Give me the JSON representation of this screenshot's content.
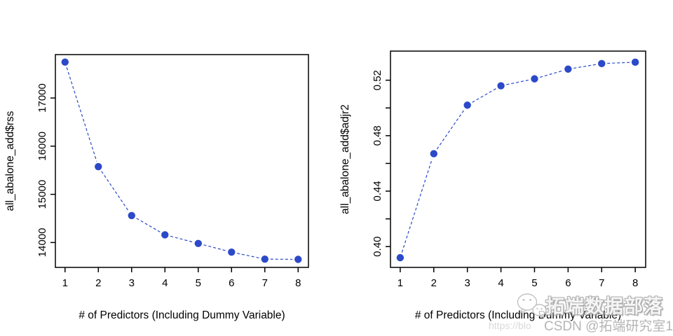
{
  "palette": {
    "series_blue": "#2B49C9",
    "axis_black": "#000000",
    "background": "#ffffff",
    "watermark_gray": "#b5b5b5",
    "watermark_light_gray": "#d9d9d9"
  },
  "chart_data": [
    {
      "type": "line",
      "title": "",
      "xlabel": "# of Predictors (Including Dummy Variable)",
      "ylabel": "all_abalone_add$rss",
      "x": [
        1,
        2,
        3,
        4,
        5,
        6,
        7,
        8
      ],
      "values": [
        17745,
        15575,
        14560,
        14160,
        13980,
        13800,
        13655,
        13650
      ],
      "series_name": "all_abalone_add$rss",
      "marker": "filled-circle",
      "line_style": "dashed",
      "color": "#2B49C9",
      "grid": false,
      "legend": null,
      "xlim": [
        0.71,
        8.31
      ],
      "ylim": [
        13483,
        17901
      ],
      "xticks": [
        {
          "v": 1,
          "label": "1"
        },
        {
          "v": 2,
          "label": "2"
        },
        {
          "v": 3,
          "label": "3"
        },
        {
          "v": 4,
          "label": "4"
        },
        {
          "v": 5,
          "label": "5"
        },
        {
          "v": 6,
          "label": "6"
        },
        {
          "v": 7,
          "label": "7"
        },
        {
          "v": 8,
          "label": "8"
        }
      ],
      "yticks": [
        {
          "v": 14000,
          "label": "14000"
        },
        {
          "v": 15000,
          "label": "15000"
        },
        {
          "v": 16000,
          "label": "16000"
        },
        {
          "v": 17000,
          "label": "17000"
        }
      ]
    },
    {
      "type": "line",
      "title": "",
      "xlabel": "# of Predictors (Including Dummy Variable)",
      "ylabel": "all_abalone_add$adjr2",
      "x": [
        1,
        2,
        3,
        4,
        5,
        6,
        7,
        8
      ],
      "values": [
        0.392,
        0.467,
        0.502,
        0.516,
        0.521,
        0.528,
        0.532,
        0.533
      ],
      "series_name": "all_abalone_add$adjr2",
      "marker": "filled-circle",
      "line_style": "dashed",
      "color": "#2B49C9",
      "grid": false,
      "legend": null,
      "xlim": [
        0.71,
        8.31
      ],
      "ylim": [
        0.385,
        0.541
      ],
      "xticks": [
        {
          "v": 1,
          "label": "1"
        },
        {
          "v": 2,
          "label": "2"
        },
        {
          "v": 3,
          "label": "3"
        },
        {
          "v": 4,
          "label": "4"
        },
        {
          "v": 5,
          "label": "5"
        },
        {
          "v": 6,
          "label": "6"
        },
        {
          "v": 7,
          "label": "7"
        },
        {
          "v": 8,
          "label": "8"
        }
      ],
      "yticks": [
        {
          "v": 0.4,
          "label": "0.40"
        },
        {
          "v": 0.42,
          "label": ""
        },
        {
          "v": 0.44,
          "label": "0.44"
        },
        {
          "v": 0.46,
          "label": ""
        },
        {
          "v": 0.48,
          "label": "0.48"
        },
        {
          "v": 0.5,
          "label": ""
        },
        {
          "v": 0.52,
          "label": "0.52"
        }
      ]
    }
  ],
  "watermark": {
    "brand": "拓端数据部落",
    "url_fragment": "https://blo",
    "credit": "CSDN @拓端研究室1",
    "icon": "wechat-bubbles-icon"
  }
}
